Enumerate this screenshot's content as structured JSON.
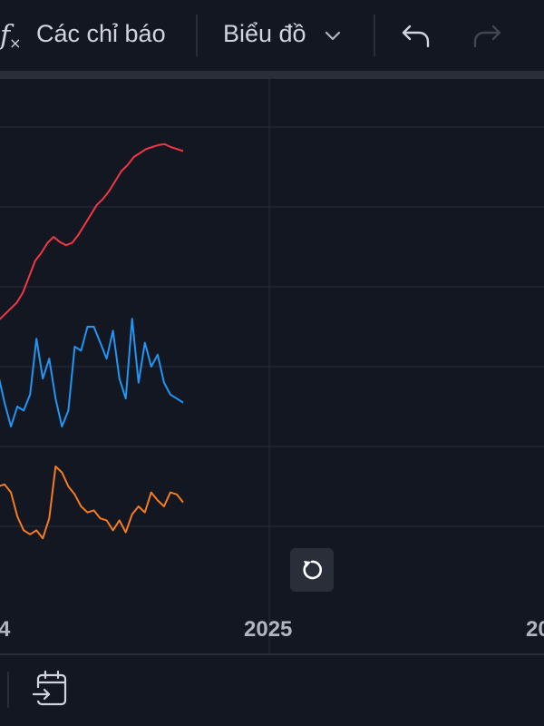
{
  "toolbar": {
    "indicators_label": "Các chỉ báo",
    "chart_type_label": "Biểu đồ",
    "icons": [
      "function-fx-icon",
      "chevron-down-icon",
      "undo-icon",
      "redo-icon"
    ]
  },
  "colors": {
    "background": "#131722",
    "grid": "#2a2e39",
    "series_red": "#f23645",
    "series_blue": "#2196f3",
    "series_orange": "#f57c1f",
    "text": "#d1d4dc",
    "axis_text": "#b2b5be"
  },
  "x_axis": {
    "ticks": [
      "4",
      "2025",
      "20"
    ]
  },
  "chart_data": {
    "type": "line",
    "title": "",
    "xlabel": "",
    "ylabel": "",
    "grid": true,
    "x_axis_ticks": [
      "…4",
      "2025",
      "20…"
    ],
    "series": [
      {
        "color": "#f23645",
        "values": [
          0.515,
          0.53,
          0.545,
          0.56,
          0.585,
          0.625,
          0.665,
          0.685,
          0.71,
          0.725,
          0.712,
          0.704,
          0.71,
          0.73,
          0.755,
          0.78,
          0.805,
          0.82,
          0.84,
          0.865,
          0.89,
          0.905,
          0.925,
          0.935,
          0.945,
          0.95,
          0.955,
          0.957,
          0.95,
          0.945,
          0.94
        ]
      },
      {
        "color": "#2196f3",
        "values": [
          0.38,
          0.31,
          0.25,
          0.3,
          0.29,
          0.33,
          0.47,
          0.37,
          0.42,
          0.32,
          0.25,
          0.29,
          0.45,
          0.44,
          0.5,
          0.5,
          0.46,
          0.42,
          0.49,
          0.37,
          0.32,
          0.52,
          0.36,
          0.46,
          0.4,
          0.43,
          0.36,
          0.33,
          0.32,
          0.31
        ]
      },
      {
        "color": "#f57c1f",
        "values": [
          0.1,
          0.105,
          0.085,
          0.025,
          -0.01,
          -0.02,
          -0.01,
          -0.03,
          0.02,
          0.15,
          0.135,
          0.1,
          0.08,
          0.05,
          0.035,
          0.04,
          0.02,
          0.015,
          -0.01,
          0.015,
          -0.015,
          0.03,
          0.05,
          0.035,
          0.085,
          0.065,
          0.05,
          0.085,
          0.08,
          0.06
        ]
      }
    ]
  }
}
